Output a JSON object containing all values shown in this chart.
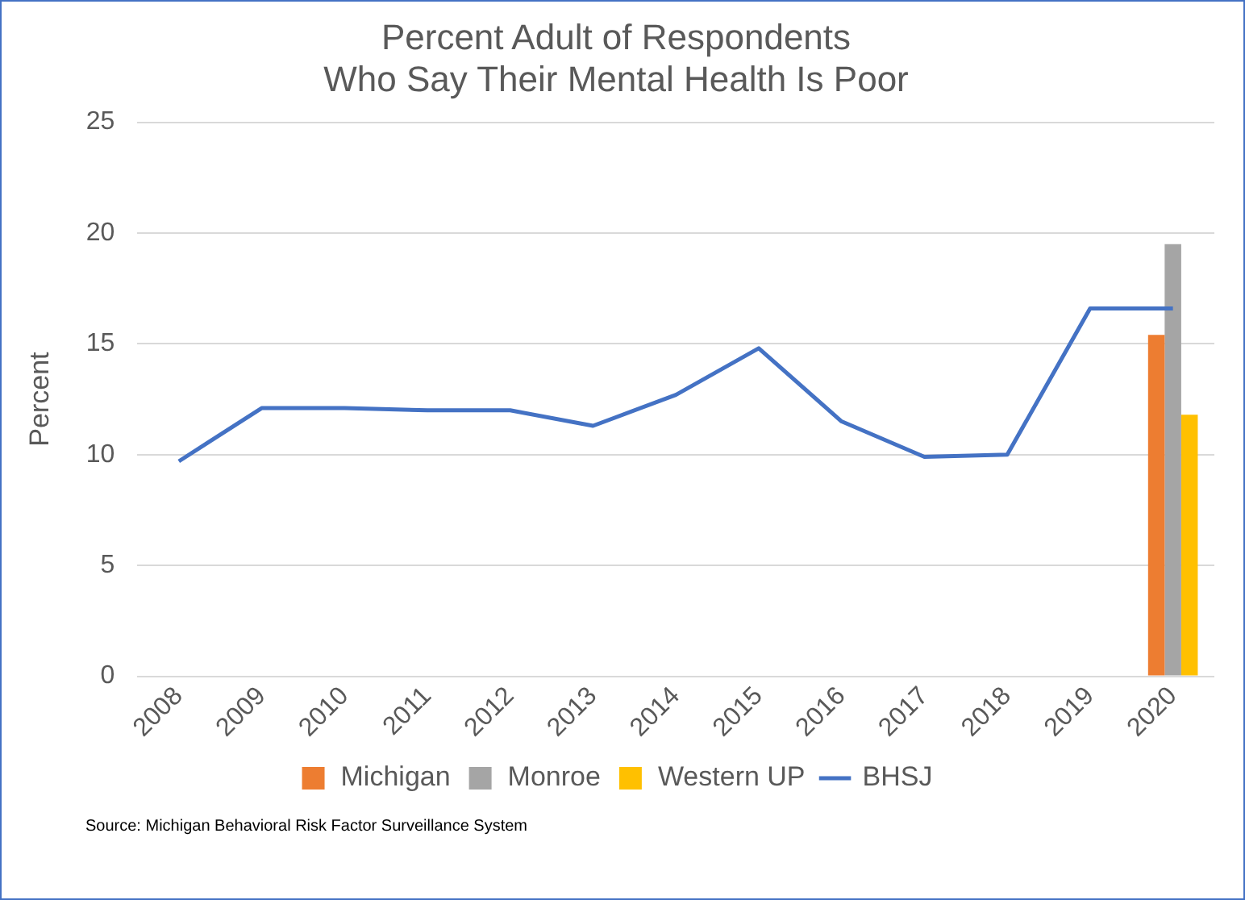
{
  "chart_data": {
    "type": "bar",
    "title": "Percent Adult of Respondents\nWho Say Their Mental Health Is Poor",
    "ylabel": "Percent",
    "categories": [
      "2008",
      "2009",
      "2010",
      "2011",
      "2012",
      "2013",
      "2014",
      "2015",
      "2016",
      "2017",
      "2018",
      "2019",
      "2020"
    ],
    "series": [
      {
        "name": "Michigan",
        "color": "#ed7d31",
        "values": [
          null,
          null,
          null,
          null,
          null,
          null,
          null,
          null,
          null,
          null,
          null,
          null,
          15.4
        ]
      },
      {
        "name": "Monroe",
        "color": "#a5a5a5",
        "values": [
          null,
          null,
          null,
          null,
          null,
          null,
          null,
          null,
          null,
          null,
          null,
          null,
          19.5
        ]
      },
      {
        "name": "Western UP",
        "color": "#ffc000",
        "values": [
          null,
          null,
          null,
          null,
          null,
          null,
          null,
          null,
          null,
          null,
          null,
          null,
          11.8
        ]
      },
      {
        "name": "BHSJ",
        "type": "line",
        "color": "#4472c4",
        "values": [
          9.7,
          12.1,
          12.1,
          12.0,
          12.0,
          11.3,
          12.7,
          14.8,
          11.5,
          9.9,
          10.0,
          16.6,
          16.6
        ]
      }
    ],
    "ylim": [
      0,
      25
    ],
    "yticks": [
      0,
      5,
      10,
      15,
      20,
      25
    ],
    "grid": "y",
    "legend": "bottom",
    "marker": "none",
    "annotations": [
      "Source: Michigan Behavioral Risk Factor Surveillance System"
    ]
  }
}
